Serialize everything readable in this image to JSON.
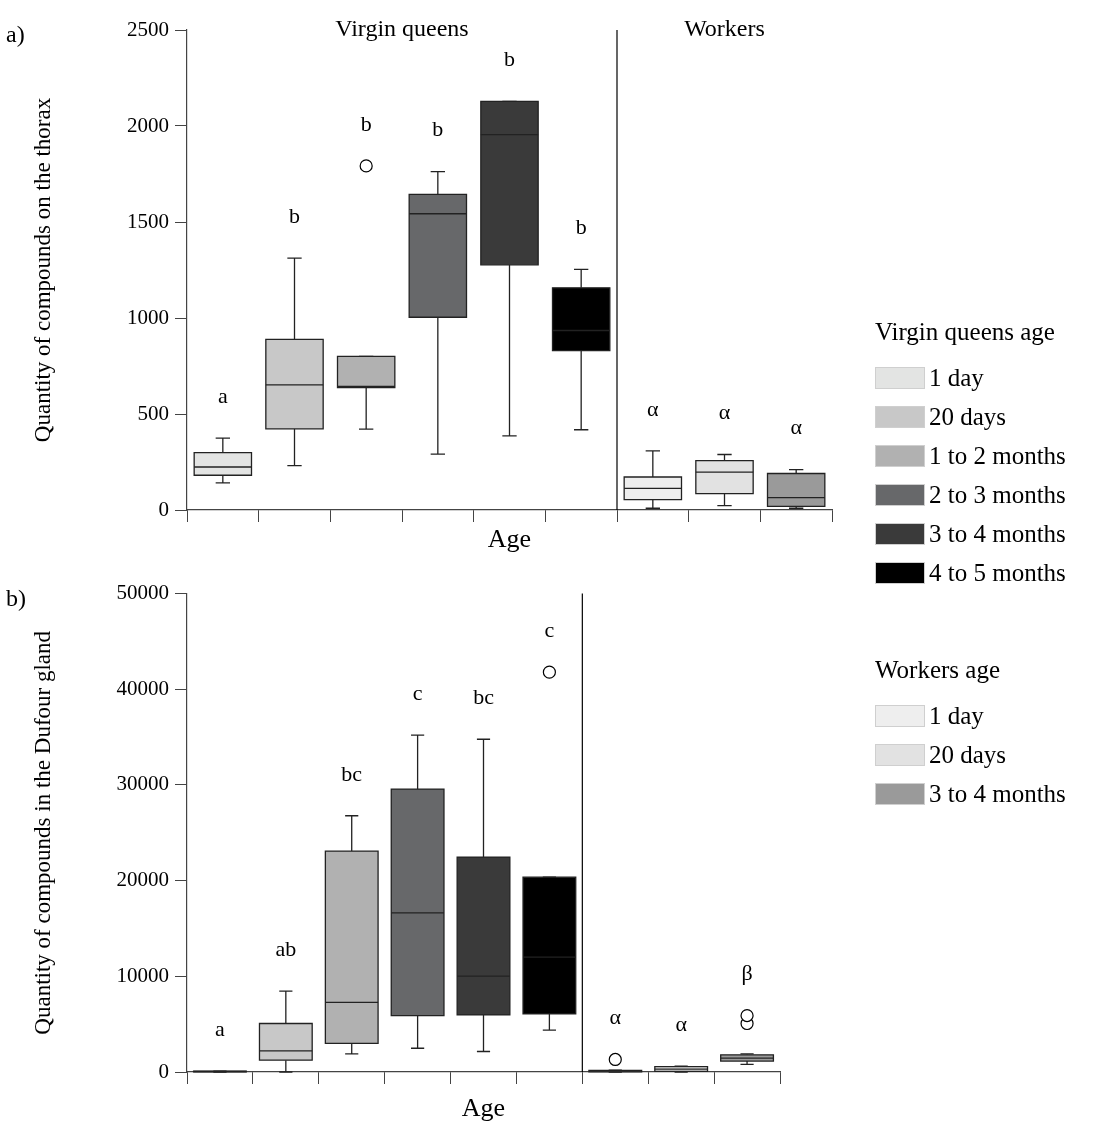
{
  "chart_data": [
    {
      "type": "box",
      "title": "a)",
      "ylabel": "Quantity of compounds on the thorax",
      "xlabel": "Age",
      "categories": [
        null,
        null,
        null,
        null,
        null,
        null,
        null,
        null,
        null
      ],
      "ylim": [
        0,
        2500
      ],
      "yticks": [
        0,
        500,
        1000,
        1500,
        2000,
        2500
      ],
      "tick_labels": "y",
      "legend": "right",
      "legend_title": "Virgin queens age",
      "marker": "circle",
      "series": [
        {
          "name": "1 day",
          "color": "#e3e4e3",
          "boxes": [
            {
              "low": 141,
              "q1": 181,
              "median": 224,
              "q3": 299,
              "high": 374
            },
            null,
            null,
            null,
            null,
            null,
            null,
            null,
            null
          ]
        },
        {
          "name": "20 days",
          "color": "#c8c8c8",
          "boxes": [
            null,
            {
              "low": 231,
              "q1": 423,
              "median": 652,
              "q3": 889,
              "high": 1312
            },
            null,
            null,
            null,
            null,
            null,
            null,
            null
          ]
        },
        {
          "name": "1 to 2 months",
          "color": "#b1b1b1",
          "boxes": [
            null,
            null,
            {
              "low": 421,
              "q1": 637,
              "median": 644,
              "q3": 800,
              "high": 800,
              "outliers": [
                1792
              ]
            },
            null,
            null,
            null,
            null,
            null,
            null
          ]
        },
        {
          "name": "2 to 3 months",
          "color": "#67686a",
          "boxes": [
            null,
            null,
            null,
            {
              "low": 291,
              "q1": 1004,
              "median": 1543,
              "q3": 1644,
              "high": 1762
            },
            null,
            null,
            null,
            null,
            null
          ]
        },
        {
          "name": "3 to 4 months",
          "color": "#3a3a3a",
          "boxes": [
            null,
            null,
            null,
            null,
            {
              "low": 386,
              "q1": 1277,
              "median": 1955,
              "q3": 2128,
              "high": 2128
            },
            null,
            null,
            null,
            null
          ]
        },
        {
          "name": "4 to 5 months",
          "color": "#000000",
          "boxes": [
            null,
            null,
            null,
            null,
            null,
            {
              "low": 418,
              "q1": 830,
              "median": 935,
              "q3": 1157,
              "high": 1253
            },
            null,
            null,
            null
          ]
        },
        {
          "name": "1 day",
          "color": "#eeeeee",
          "boxes": [
            null,
            null,
            null,
            null,
            null,
            null,
            {
              "low": 9,
              "q1": 54,
              "median": 113,
              "q3": 172,
              "high": 308
            },
            null,
            null
          ]
        },
        {
          "name": "20 days",
          "color": "#e2e2e2",
          "boxes": [
            null,
            null,
            null,
            null,
            null,
            null,
            null,
            {
              "low": 23,
              "q1": 85,
              "median": 197,
              "q3": 257,
              "high": 289
            },
            null
          ]
        },
        {
          "name": "3 to 4 months",
          "color": "#9a9a9a",
          "boxes": [
            null,
            null,
            null,
            null,
            null,
            null,
            null,
            null,
            {
              "low": 9,
              "q1": 19,
              "median": 64,
              "q3": 190,
              "high": 210
            }
          ]
        }
      ],
      "annotations": [
        "Virgin queens",
        "Workers",
        "Workers age",
        "a",
        "b",
        "b",
        "b",
        "b",
        "b",
        "α",
        "α",
        "α"
      ]
    },
    {
      "type": "box",
      "title": "b)",
      "ylabel": "Quantity of compounds in the Dufour gland",
      "xlabel": "Age",
      "categories": [
        null,
        null,
        null,
        null,
        null,
        null,
        null,
        null,
        null
      ],
      "ylim": [
        0,
        50000
      ],
      "yticks": [
        0,
        10000,
        20000,
        30000,
        40000,
        50000
      ],
      "tick_labels": "y",
      "marker": "circle",
      "series": [
        {
          "color": "#e3e4e3",
          "boxes": [
            {
              "low": 0,
              "q1": 20,
              "median": 50,
              "q3": 80,
              "high": 100
            },
            null,
            null,
            null,
            null,
            null,
            null,
            null,
            null
          ]
        },
        {
          "color": "#c8c8c8",
          "boxes": [
            null,
            {
              "low": 0,
              "q1": 1240,
              "median": 2210,
              "q3": 5070,
              "high": 8450
            },
            null,
            null,
            null,
            null,
            null,
            null,
            null
          ]
        },
        {
          "color": "#b1b1b1",
          "boxes": [
            null,
            null,
            {
              "low": 1900,
              "q1": 3000,
              "median": 7280,
              "q3": 23090,
              "high": 26780
            },
            null,
            null,
            null,
            null,
            null,
            null
          ]
        },
        {
          "color": "#67686a",
          "boxes": [
            null,
            null,
            null,
            {
              "low": 2480,
              "q1": 5900,
              "median": 16630,
              "q3": 29570,
              "high": 35200
            },
            null,
            null,
            null,
            null,
            null
          ]
        },
        {
          "color": "#3a3a3a",
          "boxes": [
            null,
            null,
            null,
            null,
            {
              "low": 2140,
              "q1": 5970,
              "median": 10010,
              "q3": 22460,
              "high": 34780
            },
            null,
            null,
            null,
            null
          ]
        },
        {
          "color": "#000000",
          "boxes": [
            null,
            null,
            null,
            null,
            null,
            {
              "low": 4380,
              "q1": 6070,
              "median": 12000,
              "q3": 20360,
              "high": 20360,
              "outliers": [
                41790
              ]
            },
            null,
            null,
            null
          ]
        },
        {
          "color": "#eeeeee",
          "boxes": [
            null,
            null,
            null,
            null,
            null,
            null,
            {
              "low": 0,
              "q1": 20,
              "median": 100,
              "q3": 170,
              "high": 200,
              "outliers": [
                1310
              ]
            },
            null,
            null
          ]
        },
        {
          "color": "#e2e2e2",
          "boxes": [
            null,
            null,
            null,
            null,
            null,
            null,
            null,
            {
              "low": 0,
              "q1": 60,
              "median": 300,
              "q3": 560,
              "high": 600
            },
            null
          ]
        },
        {
          "color": "#9a9a9a",
          "boxes": [
            null,
            null,
            null,
            null,
            null,
            null,
            null,
            null,
            {
              "low": 800,
              "q1": 1140,
              "median": 1450,
              "q3": 1790,
              "high": 1900,
              "outliers": [
                5070,
                5900
              ]
            }
          ]
        }
      ],
      "annotations": [
        "a",
        "ab",
        "bc",
        "c",
        "bc",
        "c",
        "α",
        "α",
        "β"
      ]
    }
  ]
}
